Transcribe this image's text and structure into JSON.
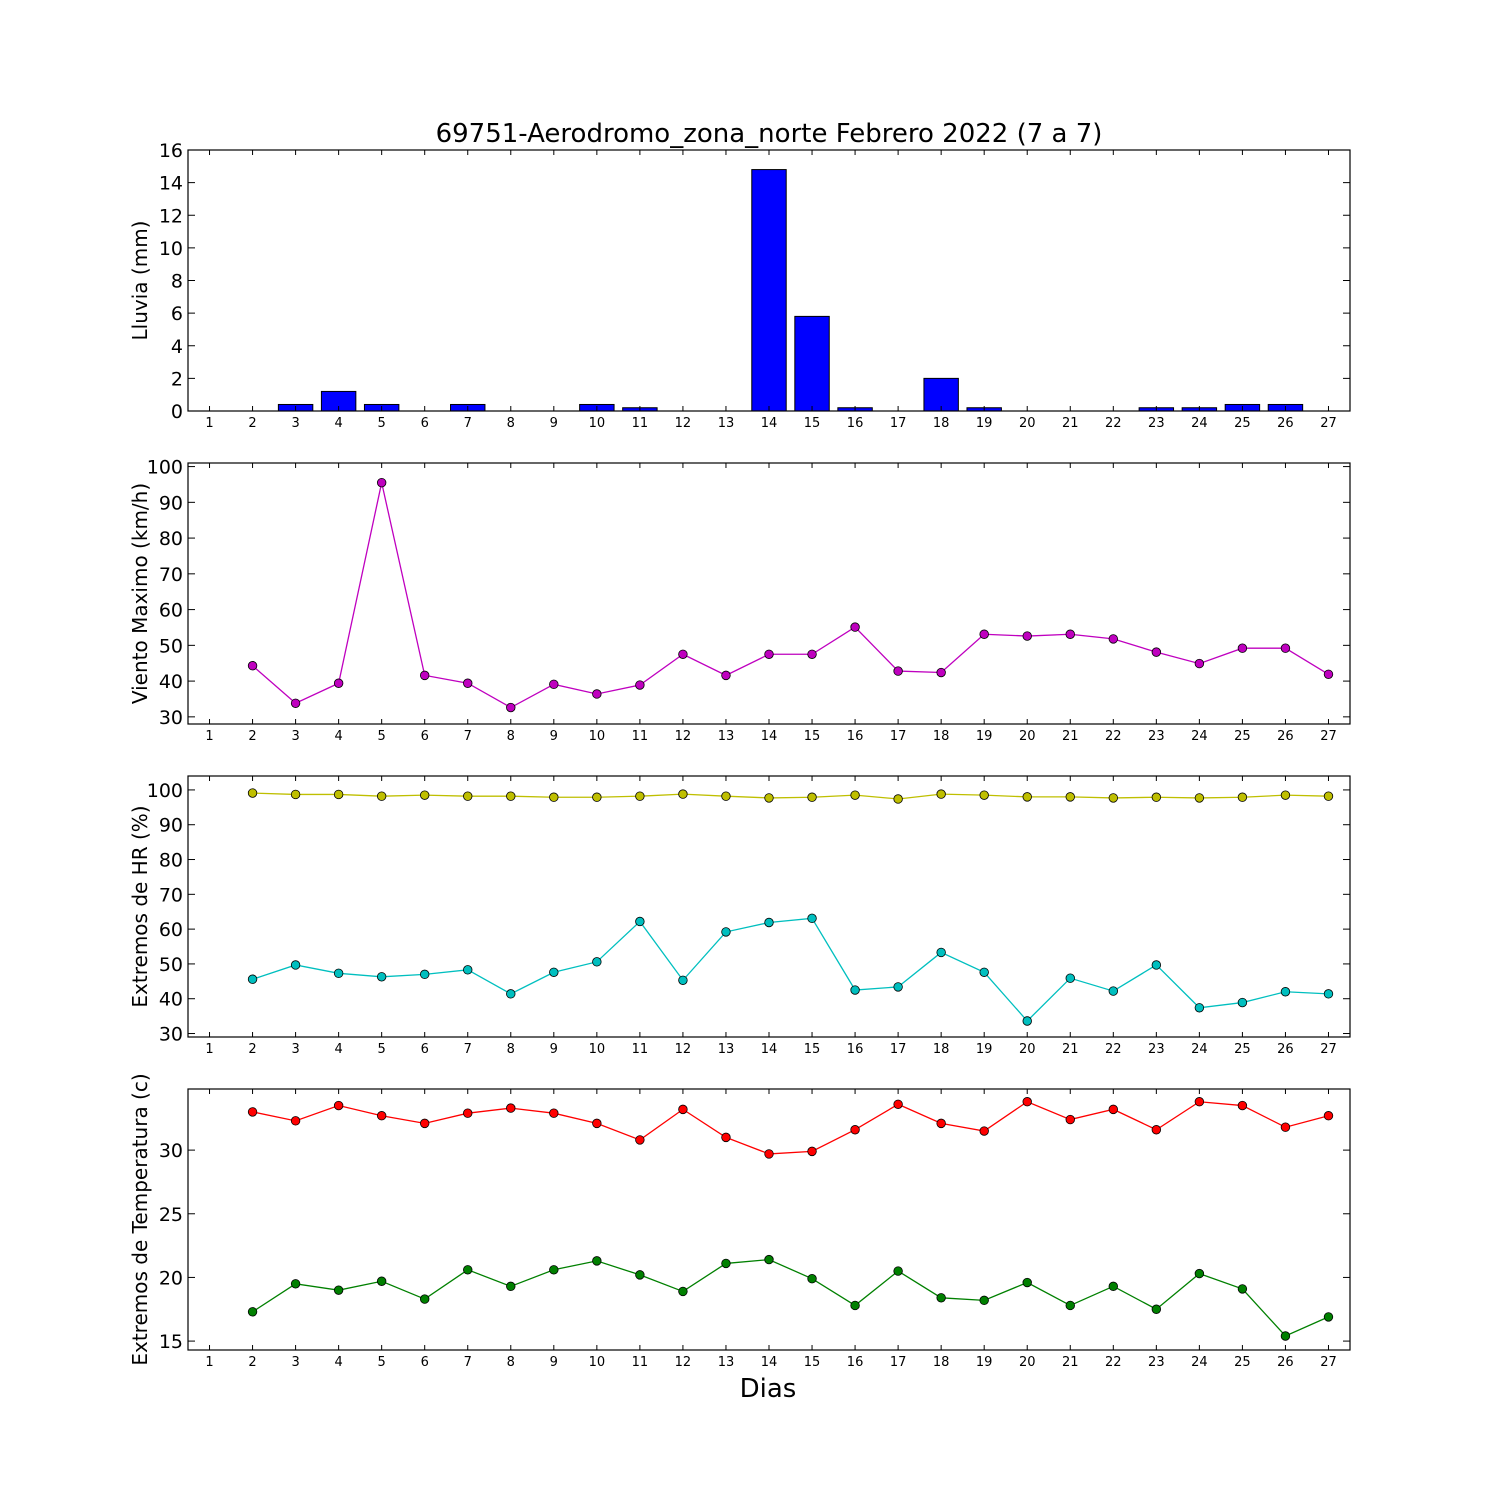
{
  "title": "69751-Aerodromo_zona_norte Febrero 2022  (7 a 7)",
  "xlabel": "Dias",
  "chart_data": [
    {
      "type": "bar",
      "ylabel": "Lluvia (mm)",
      "ylim": [
        0,
        16
      ],
      "yticks": [
        0,
        2,
        4,
        6,
        8,
        10,
        12,
        14,
        16
      ],
      "xlim": [
        0.5,
        27.5
      ],
      "x_ticks": [
        1,
        2,
        3,
        4,
        5,
        6,
        7,
        8,
        9,
        10,
        11,
        12,
        13,
        14,
        15,
        16,
        17,
        18,
        19,
        20,
        21,
        22,
        23,
        24,
        25,
        26,
        27
      ],
      "series": [
        {
          "color": "#0000ff",
          "x": [
            1,
            2,
            3,
            4,
            5,
            6,
            7,
            8,
            9,
            10,
            11,
            12,
            13,
            14,
            15,
            16,
            17,
            18,
            19,
            20,
            21,
            22,
            23,
            24,
            25,
            26,
            27
          ],
          "values": [
            0,
            0,
            0.4,
            1.2,
            0.4,
            0,
            0.4,
            0,
            0,
            0.4,
            0.2,
            0,
            0,
            14.8,
            5.8,
            0.2,
            0,
            2.0,
            0.2,
            0,
            0,
            0,
            0.2,
            0.2,
            0.4,
            0.4,
            0
          ]
        }
      ]
    },
    {
      "type": "line",
      "ylabel": "Viento Maximo (km/h)",
      "ylim": [
        28,
        101
      ],
      "yticks": [
        30,
        40,
        50,
        60,
        70,
        80,
        90,
        100
      ],
      "xlim": [
        0.5,
        27.5
      ],
      "x_ticks": [
        1,
        2,
        3,
        4,
        5,
        6,
        7,
        8,
        9,
        10,
        11,
        12,
        13,
        14,
        15,
        16,
        17,
        18,
        19,
        20,
        21,
        22,
        23,
        24,
        25,
        26,
        27
      ],
      "series": [
        {
          "color": "#bf00bf",
          "x": [
            2,
            3,
            4,
            5,
            6,
            7,
            8,
            9,
            10,
            11,
            12,
            13,
            14,
            15,
            16,
            17,
            18,
            19,
            20,
            21,
            22,
            23,
            24,
            25,
            26,
            27
          ],
          "values": [
            44.3,
            33.8,
            39.4,
            95.5,
            41.6,
            39.4,
            32.6,
            39.1,
            36.4,
            38.9,
            47.5,
            41.6,
            47.5,
            47.5,
            55.1,
            42.8,
            42.4,
            53.1,
            52.6,
            53.1,
            51.8,
            48.1,
            44.9,
            49.2,
            49.2,
            41.9
          ]
        }
      ]
    },
    {
      "type": "line",
      "ylabel": "Extremos de HR (%)",
      "ylim": [
        29,
        104
      ],
      "yticks": [
        30,
        40,
        50,
        60,
        70,
        80,
        90,
        100
      ],
      "xlim": [
        0.5,
        27.5
      ],
      "x_ticks": [
        1,
        2,
        3,
        4,
        5,
        6,
        7,
        8,
        9,
        10,
        11,
        12,
        13,
        14,
        15,
        16,
        17,
        18,
        19,
        20,
        21,
        22,
        23,
        24,
        25,
        26,
        27
      ],
      "series": [
        {
          "color": "#bfbf00",
          "x": [
            2,
            3,
            4,
            5,
            6,
            7,
            8,
            9,
            10,
            11,
            12,
            13,
            14,
            15,
            16,
            17,
            18,
            19,
            20,
            21,
            22,
            23,
            24,
            25,
            26,
            27
          ],
          "values": [
            99.1,
            98.7,
            98.7,
            98.2,
            98.5,
            98.2,
            98.2,
            97.9,
            97.9,
            98.2,
            98.8,
            98.2,
            97.7,
            97.9,
            98.5,
            97.4,
            98.8,
            98.5,
            98.0,
            98.0,
            97.7,
            97.9,
            97.7,
            97.9,
            98.5,
            98.2
          ]
        },
        {
          "color": "#00bfbf",
          "x": [
            2,
            3,
            4,
            5,
            6,
            7,
            8,
            9,
            10,
            11,
            12,
            13,
            14,
            15,
            16,
            17,
            18,
            19,
            20,
            21,
            22,
            23,
            24,
            25,
            26,
            27
          ],
          "values": [
            45.6,
            49.7,
            47.3,
            46.3,
            47.0,
            48.3,
            41.4,
            47.6,
            50.6,
            62.2,
            45.3,
            59.2,
            61.9,
            63.1,
            42.5,
            43.4,
            53.3,
            47.6,
            33.6,
            45.9,
            42.2,
            49.7,
            37.4,
            38.9,
            42.0,
            41.4
          ]
        }
      ]
    },
    {
      "type": "line",
      "ylabel": "Extremos de Temperatura (c)",
      "ylim": [
        14.3,
        34.8
      ],
      "yticks": [
        15,
        20,
        25,
        30
      ],
      "xlim": [
        0.5,
        27.5
      ],
      "x_ticks": [
        1,
        2,
        3,
        4,
        5,
        6,
        7,
        8,
        9,
        10,
        11,
        12,
        13,
        14,
        15,
        16,
        17,
        18,
        19,
        20,
        21,
        22,
        23,
        24,
        25,
        26,
        27
      ],
      "series": [
        {
          "color": "#ff0000",
          "x": [
            2,
            3,
            4,
            5,
            6,
            7,
            8,
            9,
            10,
            11,
            12,
            13,
            14,
            15,
            16,
            17,
            18,
            19,
            20,
            21,
            22,
            23,
            24,
            25,
            26,
            27
          ],
          "values": [
            33.0,
            32.3,
            33.5,
            32.7,
            32.1,
            32.9,
            33.3,
            32.9,
            32.1,
            30.8,
            33.2,
            31.0,
            29.7,
            29.9,
            31.6,
            33.6,
            32.1,
            31.5,
            33.8,
            32.4,
            33.2,
            31.6,
            33.8,
            33.5,
            31.8,
            32.7
          ]
        },
        {
          "color": "#008000",
          "x": [
            2,
            3,
            4,
            5,
            6,
            7,
            8,
            9,
            10,
            11,
            12,
            13,
            14,
            15,
            16,
            17,
            18,
            19,
            20,
            21,
            22,
            23,
            24,
            25,
            26,
            27
          ],
          "values": [
            17.3,
            19.5,
            19.0,
            19.7,
            18.3,
            20.6,
            19.3,
            20.6,
            21.3,
            20.2,
            18.9,
            21.1,
            21.4,
            19.9,
            17.8,
            20.5,
            18.4,
            18.2,
            19.6,
            17.8,
            19.3,
            17.5,
            20.3,
            19.1,
            15.4,
            16.9
          ]
        }
      ]
    }
  ]
}
